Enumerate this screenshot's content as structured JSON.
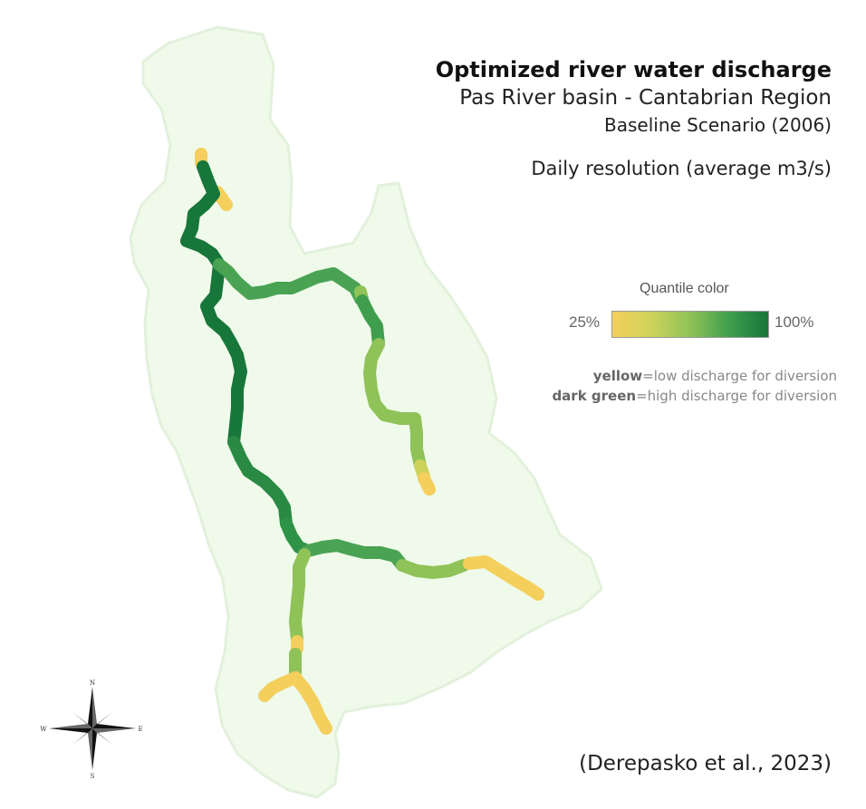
{
  "title": "Optimized river water discharge",
  "subtitle": "Pas River basin - Cantabrian Region",
  "scenario": "Baseline Scenario (2006)",
  "resolution": "Daily resolution (average m3/s)",
  "legend": {
    "title": "Quantile color",
    "min_label": "25%",
    "max_label": "100%",
    "low_color": "#f4cf5c",
    "high_color": "#17763a"
  },
  "notes": {
    "yellow_word": "yellow",
    "yellow_text": "=low discharge for diversion",
    "green_word": "dark green",
    "green_text": "=high discharge for diversion"
  },
  "citation": "(Derepasko et al., 2023)",
  "compass": {
    "n": "N",
    "s": "S",
    "e": "E",
    "w": "W"
  },
  "colors": {
    "basin_fill": "#effaea",
    "basin_stroke": "#e2f1dc",
    "yellow": "#f4cf5c",
    "yellow_green": "#cdd35a",
    "light_green": "#8fc257",
    "mid_green": "#4aa353",
    "dark_green": "#17763a"
  }
}
